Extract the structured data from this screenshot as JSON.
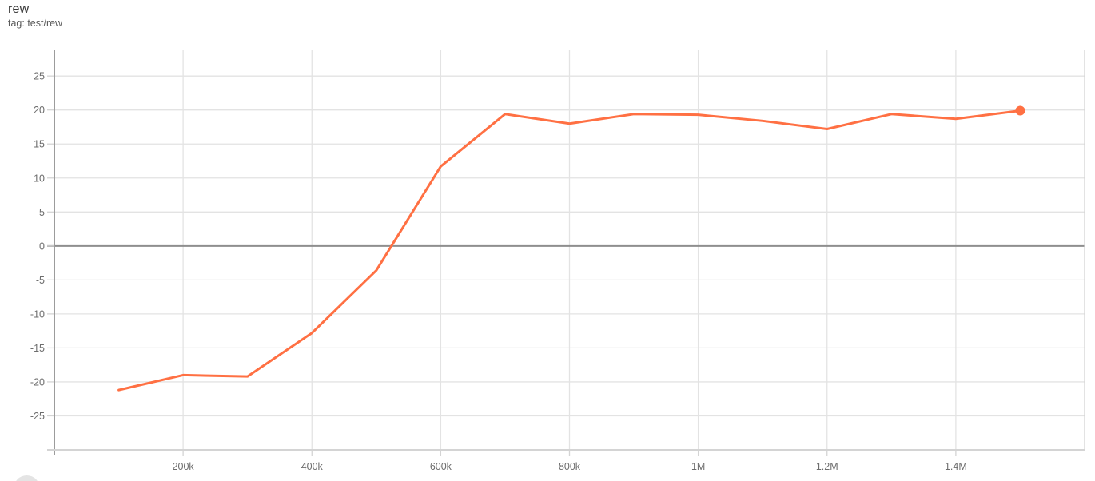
{
  "header": {
    "title": "rew",
    "tag": "tag: test/rew"
  },
  "chart_data": {
    "type": "line",
    "title": "rew",
    "tag": "test/rew",
    "series": [
      {
        "name": "test/rew",
        "color": "#ff7043",
        "x": [
          100000,
          200000,
          300000,
          400000,
          500000,
          600000,
          700000,
          800000,
          900000,
          1000000,
          1100000,
          1200000,
          1300000,
          1400000,
          1500000
        ],
        "y": [
          -21.2,
          -19.0,
          -19.2,
          -12.8,
          -3.6,
          11.7,
          19.4,
          18.0,
          19.4,
          19.3,
          18.4,
          17.2,
          19.4,
          18.7,
          19.9
        ]
      }
    ],
    "xlim": [
      0,
      1600000
    ],
    "ylim": [
      -30.0,
      28.9
    ],
    "x_ticks": [
      {
        "value": 200000,
        "label": "200k"
      },
      {
        "value": 400000,
        "label": "400k"
      },
      {
        "value": 600000,
        "label": "600k"
      },
      {
        "value": 800000,
        "label": "800k"
      },
      {
        "value": 1000000,
        "label": "1M"
      },
      {
        "value": 1200000,
        "label": "1.2M"
      },
      {
        "value": 1400000,
        "label": "1.4M"
      }
    ],
    "y_ticks": [
      {
        "value": -25,
        "label": "-25"
      },
      {
        "value": -20,
        "label": "-20"
      },
      {
        "value": -15,
        "label": "-15"
      },
      {
        "value": -10,
        "label": "-10"
      },
      {
        "value": -5,
        "label": "-5"
      },
      {
        "value": 0,
        "label": "0"
      },
      {
        "value": 5,
        "label": "5"
      },
      {
        "value": 10,
        "label": "10"
      },
      {
        "value": 15,
        "label": "15"
      },
      {
        "value": 20,
        "label": "20"
      },
      {
        "value": 25,
        "label": "25"
      }
    ],
    "grid": true,
    "zero_line": true,
    "endpoint_marker": true,
    "legend_position": "none"
  },
  "colors": {
    "line": "#ff7043",
    "grid": "#e3e3e3",
    "zero_line": "#8e8e8e",
    "axis_left": "#9c9c9c",
    "axis_light": "#d4d4d4",
    "tick_label": "#6d6d6d"
  }
}
